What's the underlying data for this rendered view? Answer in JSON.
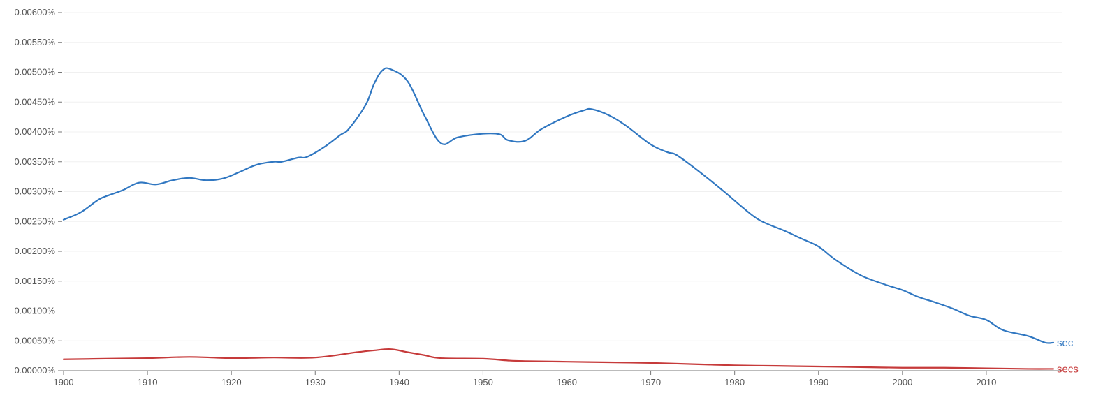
{
  "chart_data": {
    "type": "line",
    "title": "",
    "xlabel": "",
    "ylabel": "",
    "xlim": [
      1900,
      2019
    ],
    "ylim": [
      0,
      0.006
    ],
    "grid": true,
    "legend": "inline-right-end",
    "y_ticks": [
      {
        "value": 0.0,
        "label": "0.00000%"
      },
      {
        "value": 0.0005,
        "label": "0.00050%"
      },
      {
        "value": 0.001,
        "label": "0.00100%"
      },
      {
        "value": 0.0015,
        "label": "0.00150%"
      },
      {
        "value": 0.002,
        "label": "0.00200%"
      },
      {
        "value": 0.0025,
        "label": "0.00250%"
      },
      {
        "value": 0.003,
        "label": "0.00300%"
      },
      {
        "value": 0.0035,
        "label": "0.00350%"
      },
      {
        "value": 0.004,
        "label": "0.00400%"
      },
      {
        "value": 0.0045,
        "label": "0.00450%"
      },
      {
        "value": 0.005,
        "label": "0.00500%"
      },
      {
        "value": 0.0055,
        "label": "0.00550%"
      },
      {
        "value": 0.006,
        "label": "0.00600%"
      }
    ],
    "x_ticks": [
      {
        "value": 1900,
        "label": "1900"
      },
      {
        "value": 1910,
        "label": "1910"
      },
      {
        "value": 1920,
        "label": "1920"
      },
      {
        "value": 1930,
        "label": "1930"
      },
      {
        "value": 1940,
        "label": "1940"
      },
      {
        "value": 1950,
        "label": "1950"
      },
      {
        "value": 1960,
        "label": "1960"
      },
      {
        "value": 1970,
        "label": "1970"
      },
      {
        "value": 1980,
        "label": "1980"
      },
      {
        "value": 1990,
        "label": "1990"
      },
      {
        "value": 2000,
        "label": "2000"
      },
      {
        "value": 2010,
        "label": "2010"
      }
    ],
    "series": [
      {
        "name": "sec",
        "color": "#3077c1",
        "x": [
          1900,
          1902,
          1904,
          1905,
          1907,
          1909,
          1911,
          1913,
          1915,
          1917,
          1919,
          1921,
          1923,
          1925,
          1926,
          1928,
          1929,
          1931,
          1933,
          1934,
          1936,
          1937,
          1938,
          1939,
          1941,
          1943,
          1945,
          1947,
          1950,
          1952,
          1953,
          1955,
          1957,
          1960,
          1962,
          1963,
          1965,
          1967,
          1970,
          1972,
          1973,
          1975,
          1977,
          1979,
          1981,
          1983,
          1986,
          1988,
          1990,
          1992,
          1995,
          1998,
          2000,
          2002,
          2004,
          2006,
          2008,
          2010,
          2012,
          2015,
          2017,
          2018
        ],
        "y": [
          0.00253,
          0.00265,
          0.00285,
          0.00292,
          0.00302,
          0.00315,
          0.00312,
          0.00319,
          0.00323,
          0.00319,
          0.00322,
          0.00333,
          0.00345,
          0.0035,
          0.0035,
          0.00357,
          0.00358,
          0.00374,
          0.00395,
          0.00405,
          0.00445,
          0.0048,
          0.00503,
          0.00505,
          0.00485,
          0.00428,
          0.00381,
          0.00391,
          0.00397,
          0.00396,
          0.00386,
          0.00385,
          0.00405,
          0.00426,
          0.00436,
          0.00438,
          0.00428,
          0.00411,
          0.00379,
          0.00366,
          0.00362,
          0.00342,
          0.0032,
          0.00297,
          0.00273,
          0.00252,
          0.00234,
          0.00221,
          0.00208,
          0.00186,
          0.0016,
          0.00144,
          0.00135,
          0.00123,
          0.00114,
          0.00104,
          0.00092,
          0.00085,
          0.00068,
          0.00058,
          0.00047,
          0.00047
        ]
      },
      {
        "name": "secs",
        "color": "#c63a3a",
        "x": [
          1900,
          1905,
          1910,
          1915,
          1920,
          1925,
          1930,
          1935,
          1937,
          1939,
          1941,
          1943,
          1945,
          1950,
          1953,
          1955,
          1960,
          1965,
          1970,
          1975,
          1980,
          1985,
          1990,
          1995,
          2000,
          2005,
          2010,
          2015,
          2018
        ],
        "y": [
          0.00019,
          0.0002,
          0.00021,
          0.00023,
          0.00021,
          0.00022,
          0.00022,
          0.00031,
          0.00034,
          0.00036,
          0.00031,
          0.00026,
          0.00021,
          0.0002,
          0.00017,
          0.00016,
          0.00015,
          0.00014,
          0.00013,
          0.00011,
          9e-05,
          8e-05,
          7e-05,
          6e-05,
          5e-05,
          5e-05,
          4e-05,
          3e-05,
          3e-05
        ]
      }
    ]
  }
}
